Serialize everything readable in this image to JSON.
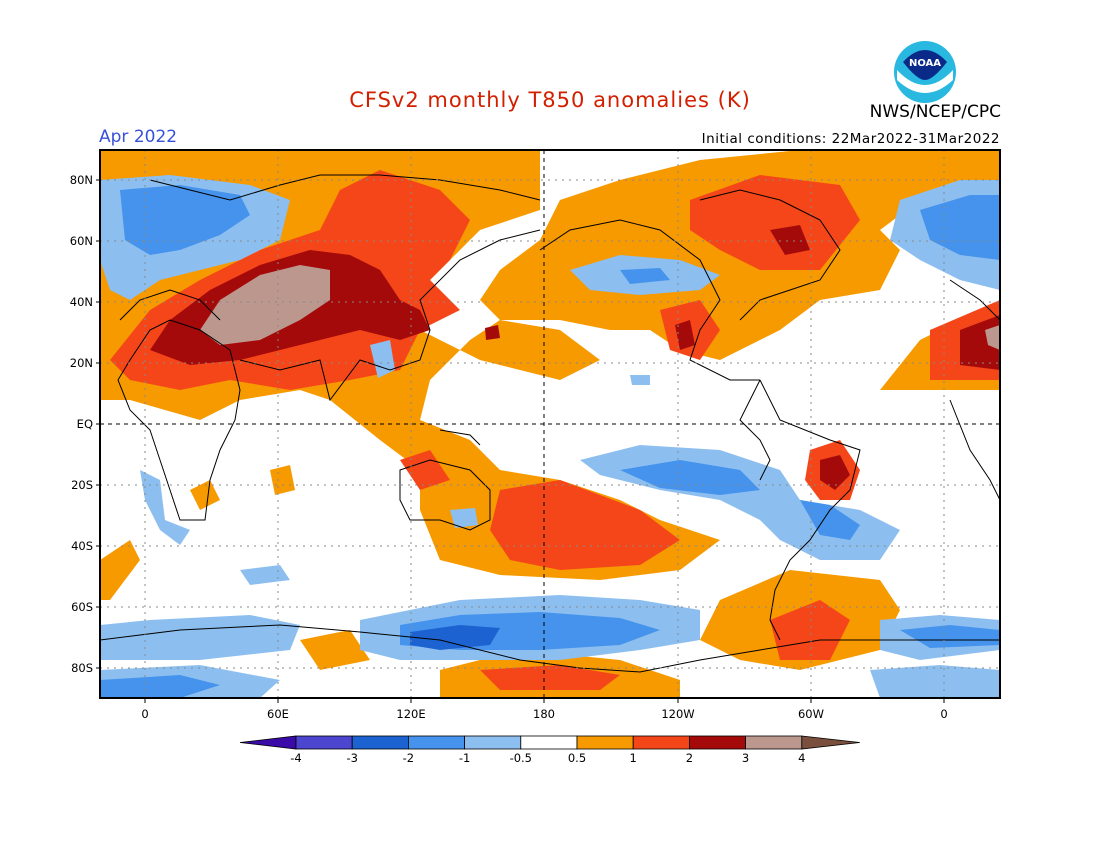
{
  "header": {
    "title": "CFSv2 monthly T850 anomalies (K)",
    "month": "Apr 2022",
    "initial_conditions": "Initial conditions: 22Mar2022-31Mar2022",
    "agency": "NWS/NCEP/CPC",
    "logo_text": "NOAA"
  },
  "map": {
    "lat_labels": [
      "80N",
      "60N",
      "40N",
      "20N",
      "EQ",
      "20S",
      "40S",
      "60S",
      "80S"
    ],
    "lon_labels": [
      "0",
      "60E",
      "120E",
      "180",
      "120W",
      "60W",
      "0"
    ],
    "anomaly_regions": [
      {
        "label": "+3",
        "level": "3 to 4",
        "color": "#bc978e"
      },
      {
        "label": "+2",
        "level": "2 to 3",
        "color": "#a50a0a"
      },
      {
        "label": "+1",
        "level": "1 to 2",
        "color": "#f5461a"
      },
      {
        "label": "+0.5",
        "level": "0.5 to 1",
        "color": "#f79a00"
      },
      {
        "label": "-0.5",
        "level": "-1 to -0.5",
        "color": "#8cbfef"
      },
      {
        "label": "-1",
        "level": "-2 to -1",
        "color": "#4593ec"
      },
      {
        "label": "-2",
        "level": "-3 to -2",
        "color": "#1c63d1"
      }
    ]
  },
  "colorbar": {
    "tick_labels": [
      "-4",
      "-3",
      "-2",
      "-1",
      "-0.5",
      "0.5",
      "1",
      "2",
      "3",
      "4"
    ],
    "colors": [
      "#3a0ba8",
      "#4b45cf",
      "#1c63d1",
      "#4593ec",
      "#8cbfef",
      "#ffffff",
      "#f79a00",
      "#f5461a",
      "#a50a0a",
      "#bc978e",
      "#7a4f3e"
    ]
  }
}
